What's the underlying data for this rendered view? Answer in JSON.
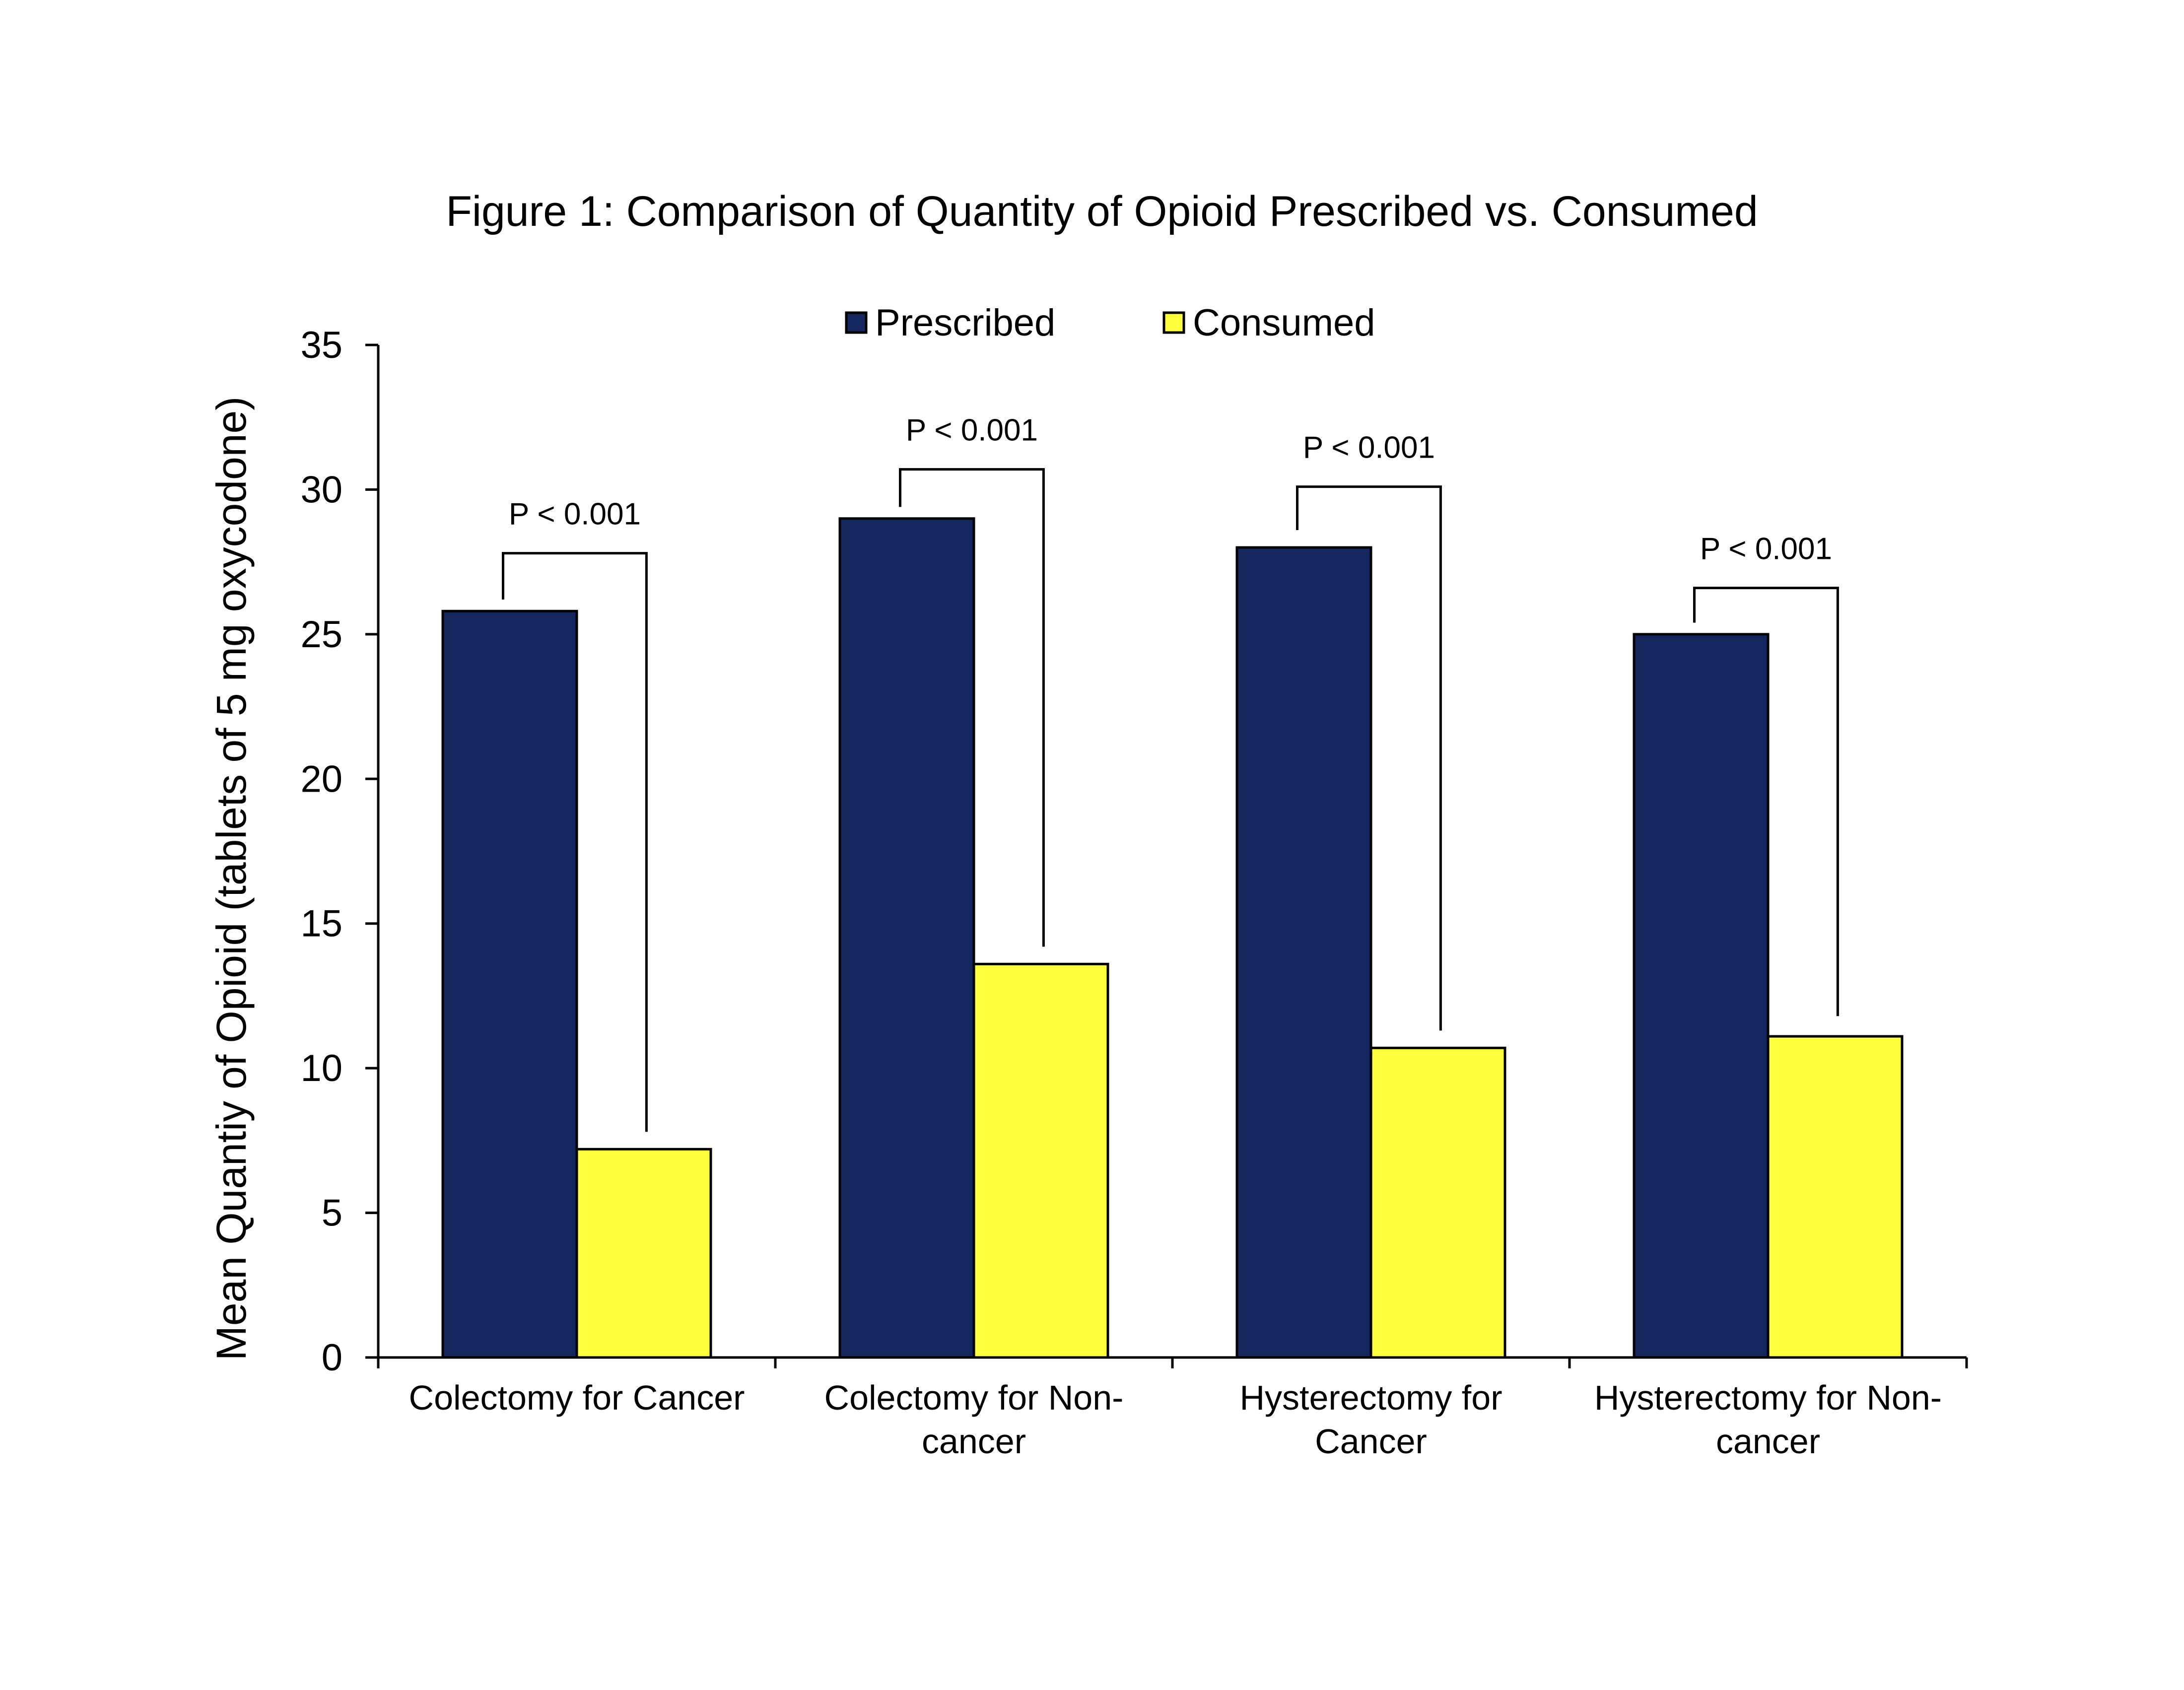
{
  "chart_data": {
    "type": "bar",
    "title": "Figure 1: Comparison of Quantity of Opioid Prescribed vs. Consumed",
    "xlabel": "",
    "ylabel": "Mean Quantiy of Opioid (tablets of 5 mg oxycodone)",
    "ylim": [
      0,
      35
    ],
    "yticks": [
      0,
      5,
      10,
      15,
      20,
      25,
      30,
      35
    ],
    "grid": false,
    "legend_position": "top-center",
    "categories": [
      [
        "Colectomy for Cancer"
      ],
      [
        "Colectomy for Non-",
        "cancer"
      ],
      [
        "Hysterectomy for",
        "Cancer"
      ],
      [
        "Hysterectomy for Non-",
        "cancer"
      ]
    ],
    "series": [
      {
        "name": "Prescribed",
        "color": "#14275e",
        "values": [
          25.8,
          29.0,
          28.0,
          25.0
        ]
      },
      {
        "name": "Consumed",
        "color": "#ffff3c",
        "values": [
          7.2,
          13.6,
          10.7,
          11.1
        ]
      }
    ],
    "annotations": [
      {
        "text": "P < 0.001",
        "bracket_top": 27.8,
        "left_end": 26.2,
        "right_end": 7.8
      },
      {
        "text": "P < 0.001",
        "bracket_top": 30.7,
        "left_end": 29.4,
        "right_end": 14.2
      },
      {
        "text": "P < 0.001",
        "bracket_top": 30.1,
        "left_end": 28.6,
        "right_end": 11.3
      },
      {
        "text": "P < 0.001",
        "bracket_top": 26.6,
        "left_end": 25.4,
        "right_end": 11.8
      }
    ]
  }
}
